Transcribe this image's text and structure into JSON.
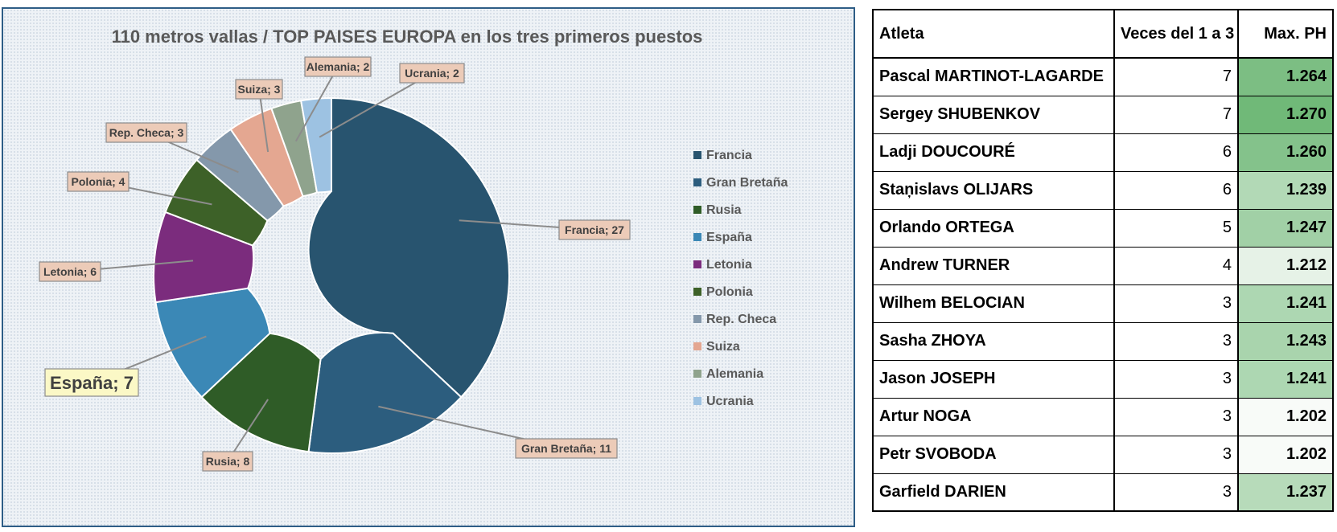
{
  "chart_data": {
    "type": "pie",
    "subtype": "donut",
    "title": "110 metros vallas / TOP  PAISES EUROPA en los tres primeros puestos",
    "legend_position": "right",
    "categories": [
      "Francia",
      "Gran Bretaña",
      "Rusia",
      "España",
      "Letonia",
      "Polonia",
      "Rep. Checa",
      "Suiza",
      "Alemania",
      "Ucrania"
    ],
    "values": [
      27,
      11,
      8,
      7,
      6,
      4,
      3,
      3,
      2,
      2
    ],
    "colors": [
      "#28546f",
      "#2c5d7e",
      "#2f5c27",
      "#3b88b6",
      "#7b2c7d",
      "#3d6128",
      "#8498ab",
      "#e4a791",
      "#8fa38d",
      "#9dc2e2"
    ],
    "data_labels": [
      "Francia; 27",
      "Gran Bretaña; 11",
      "Rusia; 8",
      "España; 7",
      "Letonia; 6",
      "Polonia; 4",
      "Rep. Checa; 3",
      "Suiza; 3",
      "Alemania; 2",
      "Ucrania; 2"
    ],
    "highlighted_label": "España; 7"
  },
  "table": {
    "headers": {
      "athlete": "Atleta",
      "count": "Veces del 1 a 3",
      "max_ph": "Max. PH"
    },
    "rows": [
      {
        "athlete": "Pascal MARTINOT-LAGARDE",
        "count": "7",
        "max_ph": "1.264",
        "fill": "#7cbe83"
      },
      {
        "athlete": "Sergey SHUBENKOV",
        "count": "7",
        "max_ph": "1.270",
        "fill": "#70b978"
      },
      {
        "athlete": "Ladji DOUCOURÉ",
        "count": "6",
        "max_ph": "1.260",
        "fill": "#84c28b"
      },
      {
        "athlete": "Staņislavs OLIJARS",
        "count": "6",
        "max_ph": "1.239",
        "fill": "#b2d9b6"
      },
      {
        "athlete": "Orlando ORTEGA",
        "count": "5",
        "max_ph": "1.247",
        "fill": "#a1d0a6"
      },
      {
        "athlete": "Andrew TURNER",
        "count": "4",
        "max_ph": "1.212",
        "fill": "#e6f2e7"
      },
      {
        "athlete": "Wilhem BELOCIAN",
        "count": "3",
        "max_ph": "1.241",
        "fill": "#add7b2"
      },
      {
        "athlete": "Sasha ZHOYA",
        "count": "3",
        "max_ph": "1.243",
        "fill": "#a9d4ad"
      },
      {
        "athlete": "Jason JOSEPH",
        "count": "3",
        "max_ph": "1.241",
        "fill": "#add7b2"
      },
      {
        "athlete": "Artur NOGA",
        "count": "3",
        "max_ph": "1.202",
        "fill": "#f8fbf8"
      },
      {
        "athlete": "Petr SVOBODA",
        "count": "3",
        "max_ph": "1.202",
        "fill": "#f8fbf8"
      },
      {
        "athlete": "Garfield DARIEN",
        "count": "3",
        "max_ph": "1.237",
        "fill": "#b7dbba"
      }
    ]
  }
}
